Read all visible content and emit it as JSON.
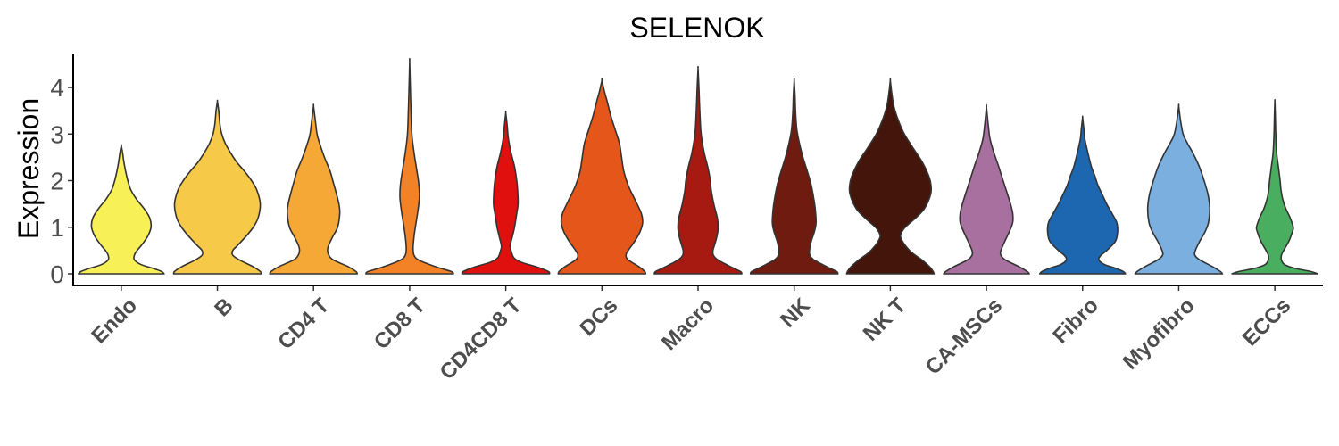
{
  "chart_data": {
    "type": "violin",
    "title": "SELENOK",
    "xlabel": "",
    "ylabel": "Expression",
    "ylim": [
      -0.2,
      4.6
    ],
    "yticks": [
      0,
      1,
      2,
      3,
      4
    ],
    "grid": false,
    "legend": "none",
    "categories": [
      "Endo",
      "B",
      "CD4 T",
      "CD8 T",
      "CD4CD8 T",
      "DCs",
      "Macro",
      "NK",
      "NK T",
      "CA-MSCs",
      "Fibro",
      "Myofibro",
      "ECCs"
    ],
    "colors": [
      "#f7f056",
      "#f7c948",
      "#f5a835",
      "#f28225",
      "#e0100f",
      "#e4561a",
      "#a61a12",
      "#701b10",
      "#44160b",
      "#a8709e",
      "#1c67b0",
      "#7aafdf",
      "#4aae60"
    ],
    "series": [
      {
        "name": "Endo",
        "max": 2.75,
        "profile": [
          [
            0,
            0.98
          ],
          [
            0.05,
            0.92
          ],
          [
            0.1,
            0.78
          ],
          [
            0.2,
            0.45
          ],
          [
            0.3,
            0.3
          ],
          [
            0.4,
            0.3
          ],
          [
            0.5,
            0.36
          ],
          [
            0.6,
            0.45
          ],
          [
            0.8,
            0.6
          ],
          [
            1.0,
            0.68
          ],
          [
            1.2,
            0.65
          ],
          [
            1.4,
            0.52
          ],
          [
            1.6,
            0.35
          ],
          [
            1.8,
            0.22
          ],
          [
            2.0,
            0.15
          ],
          [
            2.2,
            0.1
          ],
          [
            2.4,
            0.06
          ],
          [
            2.6,
            0.03
          ],
          [
            2.75,
            0
          ]
        ]
      },
      {
        "name": "B",
        "max": 3.7,
        "profile": [
          [
            0,
            1.0
          ],
          [
            0.05,
            0.98
          ],
          [
            0.15,
            0.82
          ],
          [
            0.3,
            0.5
          ],
          [
            0.4,
            0.35
          ],
          [
            0.5,
            0.35
          ],
          [
            0.6,
            0.45
          ],
          [
            0.8,
            0.65
          ],
          [
            1.0,
            0.82
          ],
          [
            1.2,
            0.93
          ],
          [
            1.5,
            0.98
          ],
          [
            1.8,
            0.9
          ],
          [
            2.0,
            0.78
          ],
          [
            2.2,
            0.62
          ],
          [
            2.4,
            0.44
          ],
          [
            2.6,
            0.3
          ],
          [
            2.8,
            0.18
          ],
          [
            3.0,
            0.1
          ],
          [
            3.2,
            0.06
          ],
          [
            3.5,
            0.03
          ],
          [
            3.7,
            0
          ]
        ]
      },
      {
        "name": "CD4 T",
        "max": 3.6,
        "profile": [
          [
            0,
            1.0
          ],
          [
            0.05,
            0.97
          ],
          [
            0.15,
            0.8
          ],
          [
            0.3,
            0.45
          ],
          [
            0.4,
            0.35
          ],
          [
            0.5,
            0.32
          ],
          [
            0.6,
            0.34
          ],
          [
            0.8,
            0.44
          ],
          [
            1.0,
            0.55
          ],
          [
            1.3,
            0.6
          ],
          [
            1.5,
            0.58
          ],
          [
            1.8,
            0.5
          ],
          [
            2.0,
            0.44
          ],
          [
            2.2,
            0.38
          ],
          [
            2.5,
            0.25
          ],
          [
            2.8,
            0.14
          ],
          [
            3.0,
            0.08
          ],
          [
            3.3,
            0.04
          ],
          [
            3.6,
            0
          ]
        ]
      },
      {
        "name": "CD8 T",
        "max": 4.55,
        "profile": [
          [
            0,
            1.0
          ],
          [
            0.05,
            0.95
          ],
          [
            0.15,
            0.6
          ],
          [
            0.3,
            0.2
          ],
          [
            0.4,
            0.1
          ],
          [
            0.5,
            0.08
          ],
          [
            0.6,
            0.08
          ],
          [
            0.8,
            0.1
          ],
          [
            1.0,
            0.13
          ],
          [
            1.3,
            0.18
          ],
          [
            1.6,
            0.22
          ],
          [
            1.8,
            0.22
          ],
          [
            2.0,
            0.2
          ],
          [
            2.3,
            0.15
          ],
          [
            2.6,
            0.1
          ],
          [
            3.0,
            0.05
          ],
          [
            3.5,
            0.03
          ],
          [
            4.0,
            0.015
          ],
          [
            4.55,
            0
          ]
        ]
      },
      {
        "name": "CD4CD8 T",
        "max": 3.45,
        "profile": [
          [
            0,
            1.0
          ],
          [
            0.05,
            0.97
          ],
          [
            0.15,
            0.7
          ],
          [
            0.25,
            0.35
          ],
          [
            0.35,
            0.18
          ],
          [
            0.5,
            0.12
          ],
          [
            0.6,
            0.1
          ],
          [
            0.8,
            0.15
          ],
          [
            1.0,
            0.2
          ],
          [
            1.3,
            0.25
          ],
          [
            1.5,
            0.28
          ],
          [
            1.8,
            0.27
          ],
          [
            2.0,
            0.25
          ],
          [
            2.3,
            0.2
          ],
          [
            2.6,
            0.12
          ],
          [
            2.9,
            0.06
          ],
          [
            3.2,
            0.03
          ],
          [
            3.45,
            0
          ]
        ]
      },
      {
        "name": "DCs",
        "max": 4.15,
        "profile": [
          [
            0,
            1.0
          ],
          [
            0.05,
            0.98
          ],
          [
            0.15,
            0.85
          ],
          [
            0.3,
            0.6
          ],
          [
            0.4,
            0.55
          ],
          [
            0.5,
            0.6
          ],
          [
            0.7,
            0.75
          ],
          [
            0.9,
            0.87
          ],
          [
            1.1,
            0.93
          ],
          [
            1.3,
            0.9
          ],
          [
            1.6,
            0.75
          ],
          [
            1.9,
            0.6
          ],
          [
            2.2,
            0.5
          ],
          [
            2.5,
            0.45
          ],
          [
            2.8,
            0.4
          ],
          [
            3.1,
            0.3
          ],
          [
            3.4,
            0.2
          ],
          [
            3.7,
            0.12
          ],
          [
            3.9,
            0.06
          ],
          [
            4.15,
            0
          ]
        ]
      },
      {
        "name": "Macro",
        "max": 4.4,
        "profile": [
          [
            0,
            1.0
          ],
          [
            0.05,
            0.97
          ],
          [
            0.15,
            0.75
          ],
          [
            0.3,
            0.45
          ],
          [
            0.4,
            0.35
          ],
          [
            0.5,
            0.34
          ],
          [
            0.6,
            0.37
          ],
          [
            0.8,
            0.43
          ],
          [
            1.0,
            0.46
          ],
          [
            1.2,
            0.44
          ],
          [
            1.5,
            0.36
          ],
          [
            1.8,
            0.3
          ],
          [
            2.0,
            0.28
          ],
          [
            2.3,
            0.22
          ],
          [
            2.6,
            0.14
          ],
          [
            3.0,
            0.07
          ],
          [
            3.5,
            0.04
          ],
          [
            4.0,
            0.02
          ],
          [
            4.4,
            0
          ]
        ]
      },
      {
        "name": "NK",
        "max": 4.15,
        "profile": [
          [
            0,
            1.0
          ],
          [
            0.05,
            0.97
          ],
          [
            0.15,
            0.75
          ],
          [
            0.3,
            0.45
          ],
          [
            0.4,
            0.36
          ],
          [
            0.5,
            0.35
          ],
          [
            0.7,
            0.39
          ],
          [
            0.9,
            0.46
          ],
          [
            1.1,
            0.5
          ],
          [
            1.4,
            0.48
          ],
          [
            1.6,
            0.45
          ],
          [
            1.9,
            0.39
          ],
          [
            2.2,
            0.3
          ],
          [
            2.5,
            0.2
          ],
          [
            2.8,
            0.12
          ],
          [
            3.1,
            0.06
          ],
          [
            3.5,
            0.03
          ],
          [
            3.8,
            0.02
          ],
          [
            4.15,
            0
          ]
        ]
      },
      {
        "name": "NK T",
        "max": 4.15,
        "profile": [
          [
            0,
            1.0
          ],
          [
            0.05,
            0.98
          ],
          [
            0.15,
            0.9
          ],
          [
            0.3,
            0.72
          ],
          [
            0.45,
            0.5
          ],
          [
            0.6,
            0.35
          ],
          [
            0.75,
            0.25
          ],
          [
            0.85,
            0.24
          ],
          [
            1.0,
            0.34
          ],
          [
            1.2,
            0.58
          ],
          [
            1.4,
            0.78
          ],
          [
            1.7,
            0.92
          ],
          [
            1.9,
            0.93
          ],
          [
            2.1,
            0.88
          ],
          [
            2.4,
            0.73
          ],
          [
            2.7,
            0.52
          ],
          [
            3.0,
            0.32
          ],
          [
            3.3,
            0.18
          ],
          [
            3.6,
            0.08
          ],
          [
            3.9,
            0.03
          ],
          [
            4.15,
            0
          ]
        ]
      },
      {
        "name": "CA-MSCs",
        "max": 3.58,
        "profile": [
          [
            0,
            0.98
          ],
          [
            0.05,
            0.93
          ],
          [
            0.15,
            0.75
          ],
          [
            0.3,
            0.43
          ],
          [
            0.4,
            0.33
          ],
          [
            0.5,
            0.33
          ],
          [
            0.7,
            0.42
          ],
          [
            0.9,
            0.52
          ],
          [
            1.1,
            0.6
          ],
          [
            1.3,
            0.6
          ],
          [
            1.5,
            0.55
          ],
          [
            1.8,
            0.45
          ],
          [
            2.0,
            0.38
          ],
          [
            2.3,
            0.28
          ],
          [
            2.6,
            0.17
          ],
          [
            2.9,
            0.08
          ],
          [
            3.2,
            0.04
          ],
          [
            3.58,
            0
          ]
        ]
      },
      {
        "name": "Fibro",
        "max": 3.35,
        "profile": [
          [
            0,
            0.98
          ],
          [
            0.05,
            0.93
          ],
          [
            0.12,
            0.75
          ],
          [
            0.2,
            0.5
          ],
          [
            0.3,
            0.37
          ],
          [
            0.4,
            0.42
          ],
          [
            0.5,
            0.55
          ],
          [
            0.7,
            0.75
          ],
          [
            0.9,
            0.8
          ],
          [
            1.1,
            0.78
          ],
          [
            1.3,
            0.67
          ],
          [
            1.5,
            0.55
          ],
          [
            1.7,
            0.45
          ],
          [
            1.9,
            0.35
          ],
          [
            2.1,
            0.28
          ],
          [
            2.3,
            0.2
          ],
          [
            2.6,
            0.12
          ],
          [
            2.9,
            0.05
          ],
          [
            3.1,
            0.03
          ],
          [
            3.35,
            0
          ]
        ]
      },
      {
        "name": "Myofibro",
        "max": 3.6,
        "profile": [
          [
            0,
            1.0
          ],
          [
            0.05,
            0.95
          ],
          [
            0.15,
            0.78
          ],
          [
            0.3,
            0.48
          ],
          [
            0.4,
            0.37
          ],
          [
            0.5,
            0.38
          ],
          [
            0.7,
            0.48
          ],
          [
            0.9,
            0.6
          ],
          [
            1.1,
            0.68
          ],
          [
            1.4,
            0.71
          ],
          [
            1.7,
            0.67
          ],
          [
            2.0,
            0.58
          ],
          [
            2.3,
            0.47
          ],
          [
            2.6,
            0.32
          ],
          [
            2.8,
            0.2
          ],
          [
            3.0,
            0.1
          ],
          [
            3.3,
            0.04
          ],
          [
            3.6,
            0
          ]
        ]
      },
      {
        "name": "ECCs",
        "max": 3.7,
        "profile": [
          [
            0,
            0.98
          ],
          [
            0.05,
            0.82
          ],
          [
            0.12,
            0.45
          ],
          [
            0.2,
            0.22
          ],
          [
            0.3,
            0.15
          ],
          [
            0.4,
            0.15
          ],
          [
            0.5,
            0.2
          ],
          [
            0.7,
            0.32
          ],
          [
            0.9,
            0.4
          ],
          [
            1.0,
            0.42
          ],
          [
            1.2,
            0.35
          ],
          [
            1.4,
            0.25
          ],
          [
            1.6,
            0.18
          ],
          [
            1.8,
            0.14
          ],
          [
            2.0,
            0.12
          ],
          [
            2.3,
            0.08
          ],
          [
            2.6,
            0.04
          ],
          [
            3.0,
            0.02
          ],
          [
            3.4,
            0.01
          ],
          [
            3.7,
            0
          ]
        ]
      }
    ]
  }
}
